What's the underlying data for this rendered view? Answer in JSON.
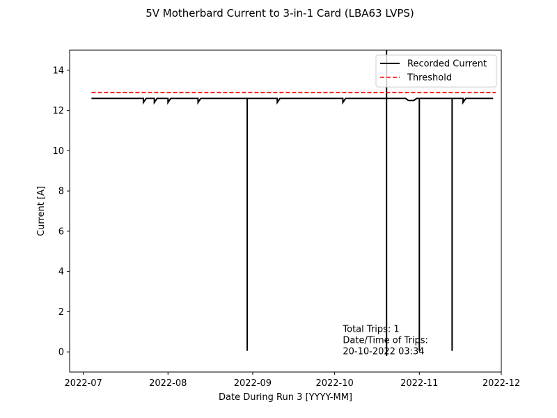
{
  "chart_data": {
    "type": "line",
    "title": "5V Motherbard Current to 3-in-1 Card (LBA63 LVPS)",
    "xlabel": "Date During Run 3 [YYYY-MM]",
    "ylabel": "Current [A]",
    "xlim": [
      "2022-06-26",
      "2022-12-01"
    ],
    "ylim": [
      -1,
      15
    ],
    "x_ticks": [
      "2022-07-01",
      "2022-08-01",
      "2022-09-01",
      "2022-10-01",
      "2022-11-01",
      "2022-12-01"
    ],
    "x_tick_labels": [
      "2022-07",
      "2022-08",
      "2022-09",
      "2022-10",
      "2022-11",
      "2022-12"
    ],
    "y_ticks": [
      0,
      2,
      4,
      6,
      8,
      10,
      12,
      14
    ],
    "y_tick_labels": [
      "0",
      "2",
      "4",
      "6",
      "8",
      "10",
      "12",
      "14"
    ],
    "grid": false,
    "legend_position": "top-right",
    "series": [
      {
        "name": "Recorded Current",
        "style": "solid",
        "color": "#000000",
        "x": [
          "2022-07-04",
          "2022-07-23",
          "2022-07-23",
          "2022-07-24",
          "2022-07-27",
          "2022-07-27",
          "2022-07-28",
          "2022-08-01",
          "2022-08-01",
          "2022-08-02",
          "2022-08-12",
          "2022-08-12",
          "2022-08-13",
          "2022-08-30",
          "2022-08-30",
          "2022-08-30",
          "2022-08-31",
          "2022-09-10",
          "2022-09-10",
          "2022-09-11",
          "2022-10-04",
          "2022-10-04",
          "2022-10-05",
          "2022-10-20",
          "2022-10-20",
          "2022-10-20",
          "2022-10-20",
          "2022-10-21",
          "2022-10-27",
          "2022-10-28",
          "2022-10-30",
          "2022-10-31",
          "2022-11-01",
          "2022-11-01",
          "2022-11-01",
          "2022-11-02",
          "2022-11-13",
          "2022-11-13",
          "2022-11-13",
          "2022-11-14",
          "2022-11-17",
          "2022-11-17",
          "2022-11-18",
          "2022-11-28"
        ],
        "y": [
          12.6,
          12.6,
          12.4,
          12.6,
          12.6,
          12.4,
          12.6,
          12.6,
          12.4,
          12.6,
          12.6,
          12.4,
          12.6,
          12.6,
          0.05,
          12.6,
          12.6,
          12.6,
          12.4,
          12.6,
          12.6,
          12.4,
          12.6,
          12.6,
          15.0,
          -0.2,
          12.6,
          12.6,
          12.6,
          12.5,
          12.5,
          12.6,
          12.6,
          0.05,
          12.6,
          12.6,
          12.6,
          0.05,
          12.6,
          12.6,
          12.6,
          12.4,
          12.6,
          12.6
        ]
      },
      {
        "name": "Threshold",
        "style": "dashed",
        "color": "#ff0000",
        "x": [
          "2022-07-04",
          "2022-11-29"
        ],
        "y": [
          12.9,
          12.9
        ]
      }
    ],
    "annotation": {
      "lines": [
        "Total Trips: 1",
        "Date/Time of Trips:",
        "20-10-2022 03:34"
      ],
      "x": "2022-10-04",
      "y": 1.0
    }
  }
}
